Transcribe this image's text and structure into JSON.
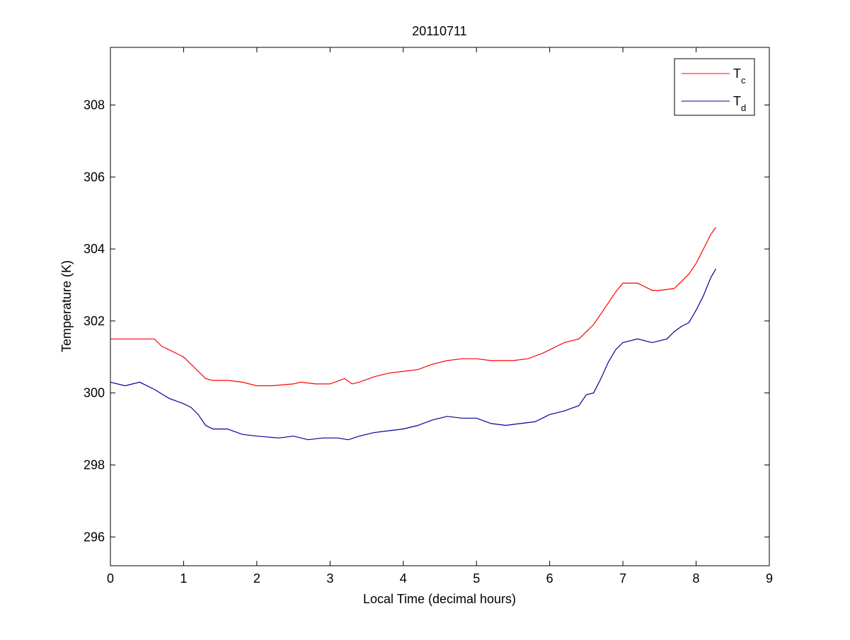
{
  "chart_data": {
    "type": "line",
    "title": "20110711",
    "xlabel": "Local Time (decimal hours)",
    "ylabel": "Temperature (K)",
    "xlim": [
      0,
      9
    ],
    "ylim": [
      295.2,
      309.6
    ],
    "xticks": [
      0,
      1,
      2,
      3,
      4,
      5,
      6,
      7,
      8,
      9
    ],
    "yticks": [
      296,
      298,
      300,
      302,
      304,
      306,
      308
    ],
    "grid": false,
    "legend_position": "top-right",
    "series": [
      {
        "name": "Tc",
        "name_main": "T",
        "name_sub": "c",
        "color": "#ff0000",
        "x": [
          0,
          0.3,
          0.6,
          0.7,
          0.8,
          1.0,
          1.1,
          1.2,
          1.3,
          1.4,
          1.6,
          1.8,
          2.0,
          2.2,
          2.5,
          2.6,
          2.8,
          3.0,
          3.2,
          3.3,
          3.4,
          3.6,
          3.8,
          4.0,
          4.2,
          4.4,
          4.6,
          4.8,
          5.0,
          5.2,
          5.5,
          5.7,
          5.9,
          6.0,
          6.2,
          6.4,
          6.5,
          6.6,
          6.7,
          6.8,
          6.9,
          7.0,
          7.2,
          7.3,
          7.4,
          7.5,
          7.7,
          7.8,
          7.9,
          8.0,
          8.1,
          8.2,
          8.27
        ],
        "values": [
          301.5,
          301.5,
          301.5,
          301.3,
          301.2,
          301.0,
          300.8,
          300.6,
          300.4,
          300.35,
          300.35,
          300.3,
          300.2,
          300.2,
          300.25,
          300.3,
          300.25,
          300.25,
          300.4,
          300.25,
          300.3,
          300.45,
          300.55,
          300.6,
          300.65,
          300.8,
          300.9,
          300.95,
          300.95,
          300.9,
          300.9,
          300.95,
          301.1,
          301.2,
          301.4,
          301.5,
          301.7,
          301.9,
          302.2,
          302.5,
          302.8,
          303.05,
          303.05,
          302.95,
          302.85,
          302.85,
          302.9,
          303.1,
          303.3,
          303.6,
          304.0,
          304.4,
          304.6
        ]
      },
      {
        "name": "Td",
        "name_main": "T",
        "name_sub": "d",
        "color": "#000099",
        "x": [
          0,
          0.2,
          0.4,
          0.6,
          0.8,
          1.0,
          1.1,
          1.2,
          1.3,
          1.4,
          1.6,
          1.8,
          2.0,
          2.3,
          2.5,
          2.7,
          2.9,
          3.1,
          3.25,
          3.4,
          3.6,
          3.8,
          4.0,
          4.2,
          4.4,
          4.6,
          4.8,
          5.0,
          5.2,
          5.4,
          5.6,
          5.8,
          6.0,
          6.2,
          6.4,
          6.5,
          6.6,
          6.7,
          6.8,
          6.9,
          7.0,
          7.2,
          7.4,
          7.6,
          7.7,
          7.8,
          7.9,
          8.0,
          8.1,
          8.2,
          8.27
        ],
        "values": [
          300.3,
          300.2,
          300.3,
          300.1,
          299.85,
          299.7,
          299.6,
          299.4,
          299.1,
          299.0,
          299.0,
          298.85,
          298.8,
          298.75,
          298.8,
          298.7,
          298.75,
          298.75,
          298.7,
          298.8,
          298.9,
          298.95,
          299.0,
          299.1,
          299.25,
          299.35,
          299.3,
          299.3,
          299.15,
          299.1,
          299.15,
          299.2,
          299.4,
          299.5,
          299.65,
          299.95,
          300.0,
          300.4,
          300.85,
          301.2,
          301.4,
          301.5,
          301.4,
          301.5,
          301.7,
          301.85,
          301.95,
          302.3,
          302.7,
          303.2,
          303.45
        ]
      }
    ]
  }
}
